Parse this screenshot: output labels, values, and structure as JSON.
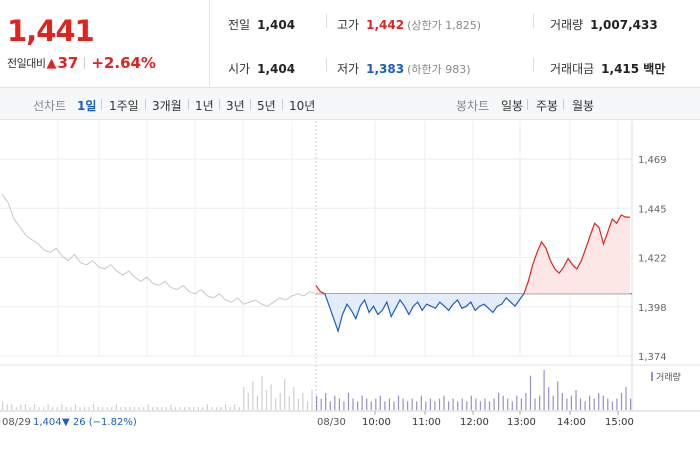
{
  "quote": {
    "price": "1,441",
    "change_label": "전일대비",
    "change_icon": "up-triangle-icon",
    "change_symbol": "▲",
    "change_amount": "37",
    "change_pct": "+2.64%",
    "prev_close_label": "전일",
    "prev_close": "1,404",
    "high_label": "고가",
    "high": "1,442",
    "upper_limit": "(상한가 1,825)",
    "volume_label": "거래량",
    "volume": "1,007,433",
    "open_label": "시가",
    "open": "1,404",
    "low_label": "저가",
    "low": "1,383",
    "lower_limit": "(하한가 983)",
    "amount_label": "거래대금",
    "amount": "1,415 백만"
  },
  "tabs": {
    "line_label": "선차트",
    "line_items": [
      "1일",
      "1주일",
      "3개월",
      "1년",
      "3년",
      "5년",
      "10년"
    ],
    "candle_label": "봉차트",
    "candle_items": [
      "일봉",
      "주봉",
      "월봉"
    ]
  },
  "colors": {
    "up": "#e0231e",
    "down": "#1a5ec4",
    "prev_line": "#c8c8c8",
    "volume_bar": "#9a8ec8"
  },
  "chart_data": {
    "type": "line",
    "y_ticks": [
      "1,469",
      "1,445",
      "1,422",
      "1,398",
      "1,374"
    ],
    "ylim": [
      1374,
      1469
    ],
    "baseline": 1404,
    "volume_legend": "거래량",
    "prev_day": {
      "date": "08/29",
      "close": "1,404",
      "change_symbol": "▼",
      "change": "26",
      "change_pct": "(−1.82%)",
      "values": [
        1452,
        1448,
        1440,
        1436,
        1432,
        1430,
        1428,
        1425,
        1424,
        1426,
        1422,
        1420,
        1423,
        1419,
        1418,
        1420,
        1417,
        1416,
        1418,
        1415,
        1413,
        1415,
        1412,
        1410,
        1412,
        1409,
        1408,
        1410,
        1407,
        1406,
        1408,
        1405,
        1404,
        1406,
        1403,
        1402,
        1404,
        1401,
        1400,
        1402,
        1399,
        1400,
        1401,
        1399,
        1398,
        1400,
        1402,
        1401,
        1403,
        1404,
        1403,
        1405,
        1404
      ]
    },
    "today": {
      "date": "08/30",
      "x_ticks": [
        "10:00",
        "11:00",
        "12:00",
        "13:00",
        "14:00",
        "15:00"
      ],
      "values": [
        1408,
        1405,
        1404,
        1398,
        1392,
        1386,
        1394,
        1399,
        1396,
        1392,
        1398,
        1401,
        1395,
        1398,
        1394,
        1396,
        1400,
        1393,
        1397,
        1401,
        1398,
        1394,
        1398,
        1400,
        1396,
        1399,
        1398,
        1397,
        1400,
        1398,
        1396,
        1399,
        1401,
        1397,
        1398,
        1400,
        1396,
        1398,
        1399,
        1397,
        1395,
        1398,
        1399,
        1402,
        1400,
        1398,
        1401,
        1404,
        1410,
        1418,
        1424,
        1429,
        1426,
        1420,
        1416,
        1414,
        1417,
        1421,
        1418,
        1416,
        1420,
        1426,
        1432,
        1438,
        1436,
        1428,
        1434,
        1440,
        1438,
        1442,
        1441,
        1441
      ]
    },
    "volume": [
      3,
      2,
      2,
      1,
      2,
      2,
      1,
      2,
      1,
      1,
      2,
      1,
      1,
      2,
      1,
      1,
      2,
      1,
      1,
      1,
      2,
      1,
      1,
      1,
      1,
      2,
      1,
      1,
      1,
      1,
      1,
      1,
      2,
      1,
      1,
      1,
      1,
      2,
      1,
      1,
      1,
      1,
      1,
      1,
      1,
      2,
      1,
      1,
      1,
      2,
      1,
      2,
      1,
      8,
      6,
      10,
      5,
      12,
      7,
      9,
      4,
      6,
      11,
      5,
      8,
      4,
      6,
      3,
      7,
      5,
      4,
      6,
      3,
      5,
      4,
      3,
      6,
      4,
      3,
      5,
      4,
      3,
      4,
      5,
      3,
      4,
      3,
      5,
      4,
      3,
      4,
      3,
      5,
      3,
      4,
      3,
      4,
      5,
      3,
      4,
      3,
      4,
      3,
      5,
      4,
      3,
      4,
      3,
      4,
      6,
      5,
      4,
      3,
      5,
      4,
      6,
      12,
      4,
      5,
      14,
      8,
      5,
      10,
      6,
      4,
      5,
      7,
      4,
      3,
      5,
      4,
      6,
      5,
      4,
      3,
      4,
      6,
      8,
      4
    ]
  }
}
